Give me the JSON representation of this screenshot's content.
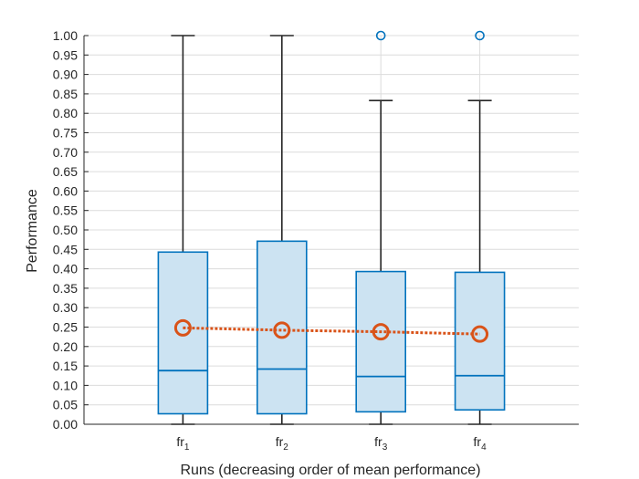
{
  "chart_data": {
    "type": "box",
    "xlabel": "Runs (decreasing order of mean performance)",
    "ylabel": "Performance",
    "ylim": [
      0,
      1
    ],
    "yticks": [
      "0.00",
      "0.05",
      "0.10",
      "0.15",
      "0.20",
      "0.25",
      "0.30",
      "0.35",
      "0.40",
      "0.45",
      "0.50",
      "0.55",
      "0.60",
      "0.65",
      "0.70",
      "0.75",
      "0.80",
      "0.85",
      "0.90",
      "0.95",
      "1.00"
    ],
    "grid": true,
    "categories": [
      {
        "base": "fr",
        "sub": "1"
      },
      {
        "base": "fr",
        "sub": "2"
      },
      {
        "base": "fr",
        "sub": "3"
      },
      {
        "base": "fr",
        "sub": "4"
      }
    ],
    "boxes": [
      {
        "whisker_low": 0.0,
        "q1": 0.027,
        "median": 0.138,
        "q3": 0.443,
        "whisker_high": 1.0,
        "outliers": []
      },
      {
        "whisker_low": 0.0,
        "q1": 0.027,
        "median": 0.142,
        "q3": 0.471,
        "whisker_high": 1.0,
        "outliers": []
      },
      {
        "whisker_low": 0.0,
        "q1": 0.032,
        "median": 0.123,
        "q3": 0.393,
        "whisker_high": 0.833,
        "outliers": [
          1.0
        ]
      },
      {
        "whisker_low": 0.0,
        "q1": 0.037,
        "median": 0.125,
        "q3": 0.391,
        "whisker_high": 0.833,
        "outliers": [
          1.0
        ]
      }
    ],
    "means": [
      0.248,
      0.242,
      0.238,
      0.232
    ],
    "colors": {
      "box_fill": "#cce3f2",
      "box_edge": "#0072bd",
      "whisker": "#262626",
      "mean": "#d95319",
      "grid": "#dcdcdc",
      "axis": "#262626"
    }
  }
}
